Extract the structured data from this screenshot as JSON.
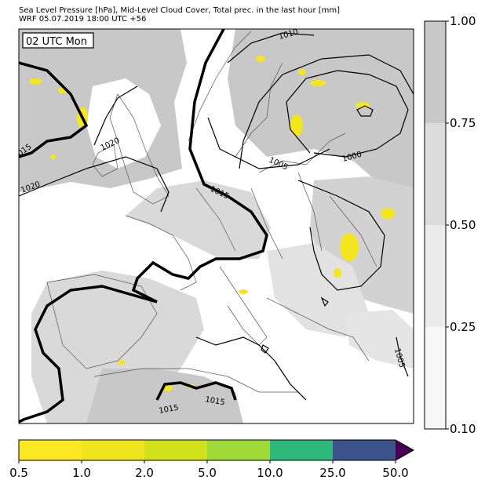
{
  "header": {
    "title_line1": "Sea Level Pressure [hPa], Mid-Level Cloud Cover, Total prec. in the last hour [mm]",
    "title_line2": "WRF 05.07.2019 18:00 UTC +56"
  },
  "map": {
    "time_box": "02 UTC Mon",
    "isobar_labels": [
      "1010",
      "1015",
      "1020",
      "1020",
      "1005",
      "1000",
      "1015",
      "1005",
      "1015",
      "1015"
    ]
  },
  "cloud_colorbar": {
    "ticks": [
      "1.00",
      "0.75",
      "0.50",
      "0.25",
      "0.10"
    ],
    "colors": [
      "#c8c8c8",
      "#dcdcdc",
      "#ececec",
      "#f7f7f7"
    ]
  },
  "precip_colorbar": {
    "ticks": [
      "0.5",
      "1.0",
      "2.0",
      "5.0",
      "10.0",
      "25.0",
      "50.0"
    ],
    "colors": [
      "#fde725",
      "#eee51c",
      "#d1e11c",
      "#a0da39",
      "#2eb87a",
      "#3b528b",
      "#440154"
    ]
  },
  "colors": {
    "cloud_dark": "#c8c8c8",
    "cloud_mid": "#d9d9d9",
    "precip": "#f3e61e",
    "isobar": "#000000"
  }
}
